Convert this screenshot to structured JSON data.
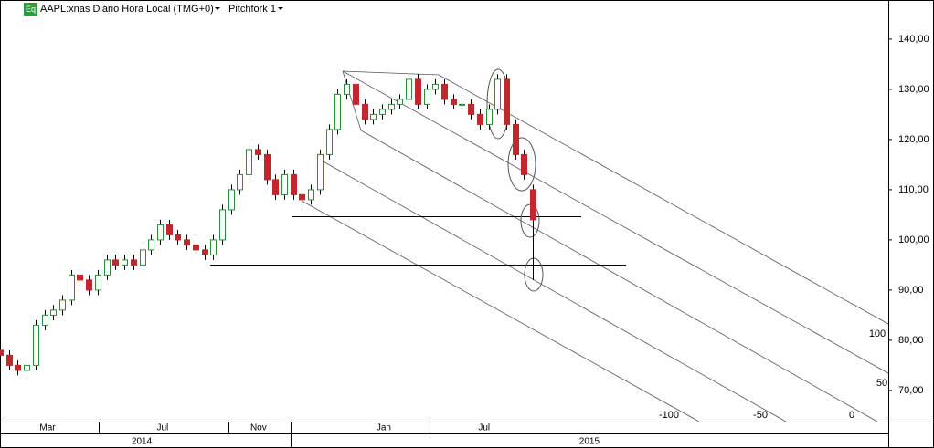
{
  "chart_data": {
    "type": "candlestick",
    "badge": "Eq",
    "title": "AAPL:xnas Diário Hora Local (TMG+0)",
    "toolbar_item": "Pitchfork 1",
    "up_color": "#2e8b3a",
    "down_color": "#c0282d",
    "xlim": [
      0,
      200
    ],
    "ylim": [
      63.8,
      147.8
    ],
    "yticks": [
      {
        "value": 70,
        "label": "70,00"
      },
      {
        "value": 80,
        "label": "80,00"
      },
      {
        "value": 90,
        "label": "90,00"
      },
      {
        "value": 100,
        "label": "100,00"
      },
      {
        "value": 110,
        "label": "110,00"
      },
      {
        "value": 120,
        "label": "120,00"
      },
      {
        "value": 130,
        "label": "130,00"
      },
      {
        "value": 140,
        "label": "140,00"
      }
    ],
    "xticks": [
      {
        "value": 10.7,
        "label": "Mar"
      },
      {
        "value": 36.6,
        "label": "Jul"
      },
      {
        "value": 58.2,
        "label": "Nov"
      },
      {
        "value": 86.4,
        "label": "Jan"
      },
      {
        "value": 109,
        "label": "Jul"
      }
    ],
    "year_ticks": [
      {
        "value": 31.9,
        "label": "2014"
      },
      {
        "value": 132.7,
        "label": "2015"
      }
    ],
    "pitchfork_labels": [
      "100",
      "50",
      "-100",
      "-50",
      "0"
    ],
    "x": [
      0,
      2,
      4,
      6,
      8,
      10,
      12,
      14,
      16,
      18,
      20,
      22,
      24,
      26,
      28,
      30,
      32,
      34,
      36,
      38,
      40,
      42,
      44,
      46,
      48,
      50,
      52,
      54,
      56,
      58,
      60,
      62,
      64,
      66,
      68,
      70,
      72,
      74,
      76,
      78,
      80,
      82,
      84,
      86,
      88,
      90,
      92,
      94,
      96,
      98,
      100,
      102,
      104,
      106,
      108,
      110,
      112,
      114,
      116,
      118,
      120
    ],
    "open": [
      78,
      77,
      75,
      74,
      75,
      83,
      85,
      86,
      88,
      93,
      92,
      90,
      93,
      96,
      95,
      96,
      95,
      98,
      100,
      103,
      101,
      100,
      99,
      98,
      97,
      100,
      106,
      110,
      113,
      118,
      117,
      112,
      109,
      113,
      109,
      108,
      110,
      117,
      122,
      129,
      131,
      127,
      124,
      125,
      126,
      127,
      128,
      132,
      127,
      130,
      131,
      128,
      127,
      127,
      125,
      123,
      126,
      132,
      123,
      117,
      110
    ],
    "high": [
      79,
      78,
      76,
      76,
      84,
      86,
      87,
      89,
      94,
      94,
      93,
      94,
      97,
      97,
      97,
      97,
      99,
      101,
      104,
      104,
      102,
      101,
      100,
      99,
      101,
      107,
      111,
      114,
      119,
      119,
      118,
      113,
      114,
      114,
      110,
      111,
      118,
      123,
      130,
      132,
      132,
      128,
      126,
      127,
      128,
      129,
      133,
      133,
      131,
      132,
      132,
      129,
      128,
      128,
      126,
      127,
      133,
      133,
      124,
      118,
      111
    ],
    "low": [
      76,
      74,
      73,
      73,
      74,
      82,
      84,
      85,
      87,
      91,
      89,
      89,
      92,
      94,
      94,
      94,
      94,
      97,
      99,
      100,
      99,
      98,
      97,
      96,
      96,
      99,
      105,
      109,
      112,
      116,
      111,
      108,
      108,
      108,
      107,
      107,
      109,
      116,
      121,
      128,
      126,
      123,
      123,
      124,
      125,
      126,
      127,
      126,
      126,
      129,
      127,
      126,
      126,
      124,
      122,
      122,
      125,
      122,
      116,
      112,
      92
    ],
    "close": [
      77,
      75,
      74,
      75,
      83,
      85,
      86,
      88,
      93,
      92,
      90,
      93,
      96,
      95,
      96,
      95,
      98,
      100,
      103,
      101,
      100,
      99,
      98,
      97,
      100,
      106,
      110,
      113,
      118,
      117,
      112,
      109,
      113,
      109,
      108,
      110,
      117,
      122,
      129,
      131,
      127,
      124,
      125,
      126,
      127,
      128,
      132,
      127,
      130,
      131,
      128,
      127,
      127,
      125,
      123,
      126,
      132,
      123,
      117,
      113,
      104
    ]
  }
}
